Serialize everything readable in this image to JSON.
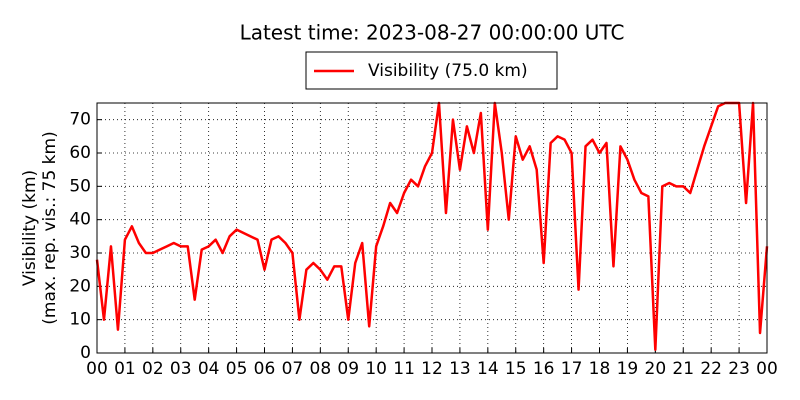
{
  "chart_data": {
    "type": "line",
    "title": "Latest time: 2023-08-27 00:00:00 UTC",
    "ylabel": [
      "Visibility (km)",
      "(max. rep. vis.: 75 km)"
    ],
    "legend": "upper center",
    "grid": true,
    "xlim": [
      0,
      24
    ],
    "ylim": [
      0,
      75
    ],
    "yticks": [
      0,
      10,
      20,
      30,
      40,
      50,
      60,
      70
    ],
    "xticks": [
      {
        "value": 0,
        "label": "00"
      },
      {
        "value": 1,
        "label": "01"
      },
      {
        "value": 2,
        "label": "02"
      },
      {
        "value": 3,
        "label": "03"
      },
      {
        "value": 4,
        "label": "04"
      },
      {
        "value": 5,
        "label": "05"
      },
      {
        "value": 6,
        "label": "06"
      },
      {
        "value": 7,
        "label": "07"
      },
      {
        "value": 8,
        "label": "08"
      },
      {
        "value": 9,
        "label": "09"
      },
      {
        "value": 10,
        "label": "10"
      },
      {
        "value": 11,
        "label": "11"
      },
      {
        "value": 12,
        "label": "12"
      },
      {
        "value": 13,
        "label": "13"
      },
      {
        "value": 14,
        "label": "14"
      },
      {
        "value": 15,
        "label": "15"
      },
      {
        "value": 16,
        "label": "16"
      },
      {
        "value": 17,
        "label": "17"
      },
      {
        "value": 18,
        "label": "18"
      },
      {
        "value": 19,
        "label": "19"
      },
      {
        "value": 20,
        "label": "20"
      },
      {
        "value": 21,
        "label": "21"
      },
      {
        "value": 22,
        "label": "22"
      },
      {
        "value": 23,
        "label": "23"
      },
      {
        "value": 24,
        "label": "00"
      }
    ],
    "x": [
      0,
      0.25,
      0.5,
      0.75,
      1,
      1.25,
      1.5,
      1.75,
      2,
      2.25,
      2.5,
      2.75,
      3,
      3.25,
      3.5,
      3.75,
      4,
      4.25,
      4.5,
      4.75,
      5,
      5.25,
      5.5,
      5.75,
      6,
      6.25,
      6.5,
      6.75,
      7,
      7.25,
      7.5,
      7.75,
      8,
      8.25,
      8.5,
      8.75,
      9,
      9.25,
      9.5,
      9.75,
      10,
      10.25,
      10.5,
      10.75,
      11,
      11.25,
      11.5,
      11.75,
      12,
      12.25,
      12.5,
      12.75,
      13,
      13.25,
      13.5,
      13.75,
      14,
      14.25,
      14.5,
      14.75,
      15,
      15.25,
      15.5,
      15.75,
      16,
      16.25,
      16.5,
      16.75,
      17,
      17.25,
      17.5,
      17.75,
      18,
      18.25,
      18.5,
      18.75,
      19,
      19.25,
      19.5,
      19.75,
      20,
      20.25,
      20.5,
      20.75,
      21,
      21.25,
      21.5,
      21.75,
      22,
      22.25,
      22.5,
      22.75,
      23,
      23.25,
      23.5,
      23.75,
      24
    ],
    "series": [
      {
        "name": "Visibility (75.0 km)",
        "color": "#ff0000",
        "values": [
          28,
          10,
          32,
          7,
          34,
          38,
          33,
          30,
          30,
          31,
          32,
          33,
          32,
          32,
          16,
          31,
          32,
          34,
          30,
          35,
          37,
          36,
          35,
          34,
          25,
          34,
          35,
          33,
          30,
          10,
          25,
          27,
          25,
          22,
          26,
          26,
          10,
          27,
          33,
          8,
          32,
          38,
          45,
          42,
          48,
          52,
          50,
          56,
          60,
          75,
          42,
          70,
          55,
          68,
          60,
          72,
          37,
          75,
          60,
          40,
          65,
          58,
          62,
          55,
          27,
          63,
          65,
          64,
          60,
          19,
          62,
          64,
          60,
          63,
          26,
          62,
          58,
          52,
          48,
          47,
          1,
          50,
          51,
          50,
          50,
          48,
          55,
          62,
          68,
          74,
          75,
          75,
          75,
          45,
          75,
          6,
          32
        ]
      }
    ]
  }
}
